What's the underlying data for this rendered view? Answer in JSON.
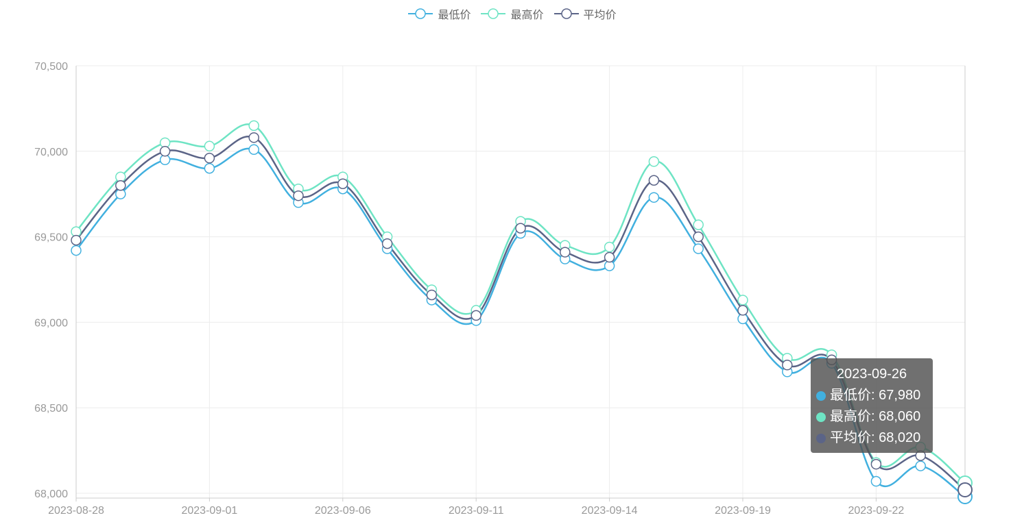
{
  "legend": [
    {
      "name": "最低价",
      "color": "#41b0df"
    },
    {
      "name": "最高价",
      "color": "#6ee4c4"
    },
    {
      "name": "平均价",
      "color": "#5b6487"
    }
  ],
  "tooltip": {
    "title": "2023-09-26",
    "rows": [
      {
        "label": "最低价: 67,980",
        "color": "#41b0df"
      },
      {
        "label": "最高价: 68,060",
        "color": "#6ee4c4"
      },
      {
        "label": "平均价: 68,020",
        "color": "#5b6487"
      }
    ]
  },
  "chart_data": {
    "type": "line",
    "x": [
      "2023-08-28",
      "2023-08-29",
      "2023-08-30",
      "2023-09-01",
      "2023-09-04",
      "2023-09-05",
      "2023-09-06",
      "2023-09-07",
      "2023-09-08",
      "2023-09-11",
      "2023-09-12",
      "2023-09-13",
      "2023-09-14",
      "2023-09-15",
      "2023-09-18",
      "2023-09-19",
      "2023-09-20",
      "2023-09-21",
      "2023-09-22",
      "2023-09-25",
      "2023-09-26"
    ],
    "x_tick_labels": [
      "2023-08-28",
      "2023-09-01",
      "2023-09-06",
      "2023-09-11",
      "2023-09-14",
      "2023-09-19",
      "2023-09-22"
    ],
    "x_tick_indices": [
      0,
      3,
      6,
      9,
      12,
      15,
      18
    ],
    "ylim": [
      68000,
      70500
    ],
    "y_ticks": [
      68000,
      68500,
      69000,
      69500,
      70000,
      70500
    ],
    "y_tick_labels": [
      "68,000",
      "68,500",
      "69,000",
      "69,500",
      "70,000",
      "70,500"
    ],
    "grid": true,
    "smooth": true,
    "legend_position": "top-center",
    "series": [
      {
        "name": "最低价",
        "color": "#41b0df",
        "values": [
          69420,
          69750,
          69950,
          69900,
          70010,
          69700,
          69780,
          69430,
          69130,
          69010,
          69520,
          69370,
          69330,
          69730,
          69430,
          69020,
          68710,
          68760,
          68070,
          68160,
          67980
        ]
      },
      {
        "name": "最高价",
        "color": "#6ee4c4",
        "values": [
          69530,
          69850,
          70050,
          70030,
          70150,
          69780,
          69850,
          69500,
          69190,
          69070,
          69590,
          69450,
          69440,
          69940,
          69570,
          69130,
          68790,
          68810,
          68180,
          68270,
          68060
        ]
      },
      {
        "name": "平均价",
        "color": "#5b6487",
        "values": [
          69480,
          69800,
          70000,
          69960,
          70080,
          69740,
          69810,
          69460,
          69160,
          69040,
          69550,
          69410,
          69380,
          69830,
          69500,
          69070,
          68750,
          68780,
          68170,
          68220,
          68020
        ]
      }
    ]
  }
}
